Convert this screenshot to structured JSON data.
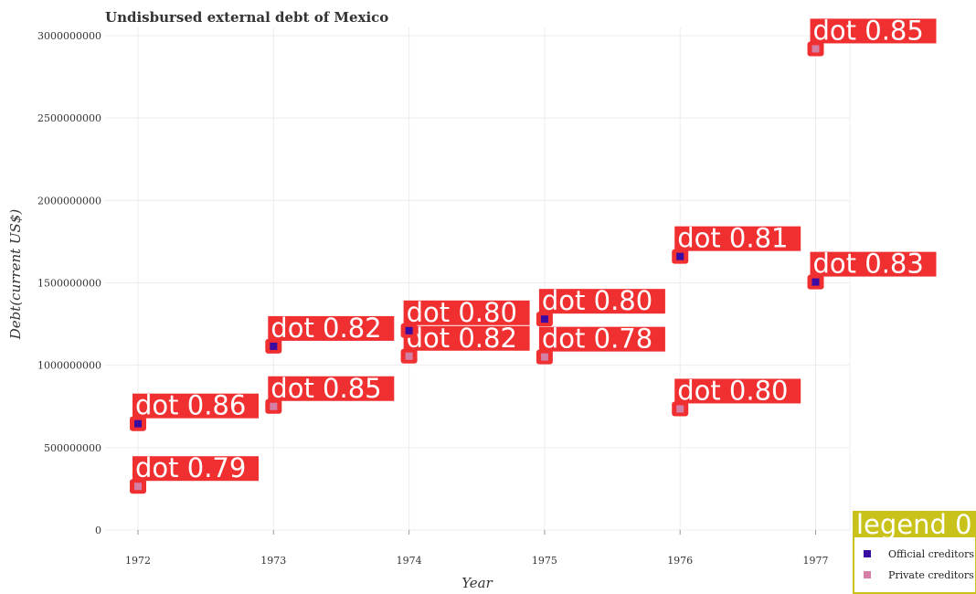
{
  "chart_data": {
    "type": "scatter",
    "title": "Undisbursed external debt of Mexico",
    "xlabel": "Year",
    "ylabel": "Debt(current US$)",
    "categories": [
      "1972",
      "1973",
      "1974",
      "1975",
      "1976",
      "1977"
    ],
    "ylim": [
      0,
      3050000000
    ],
    "yticks": [
      0,
      500000000,
      1000000000,
      1500000000,
      2000000000,
      2500000000,
      3000000000
    ],
    "ytick_labels": [
      "0",
      "500000000",
      "1000000000",
      "1500000000",
      "2000000000",
      "2500000000",
      "3000000000"
    ],
    "grid": true,
    "legend_position": "bottom-right",
    "legend_title": "legend 0",
    "series": [
      {
        "name": "Official creditors",
        "color": "#3a0ca3",
        "values": [
          645000000,
          1115000000,
          1210000000,
          1280000000,
          1660000000,
          1505000000
        ],
        "annotations": [
          "dot 0.86",
          "dot 0.82",
          "dot 0.80",
          "dot 0.80",
          "dot 0.81",
          "dot 0.83"
        ]
      },
      {
        "name": "Private creditors",
        "color": "#d47fa6",
        "values": [
          265000000,
          750000000,
          1055000000,
          1050000000,
          735000000,
          2920000000
        ],
        "annotations": [
          "dot 0.79",
          "dot 0.85",
          "dot 0.82",
          "dot 0.78",
          "dot 0.80",
          "dot 0.85"
        ]
      }
    ],
    "annotation_color": "#f03030",
    "legend_bg_color": "#c9c21a"
  }
}
